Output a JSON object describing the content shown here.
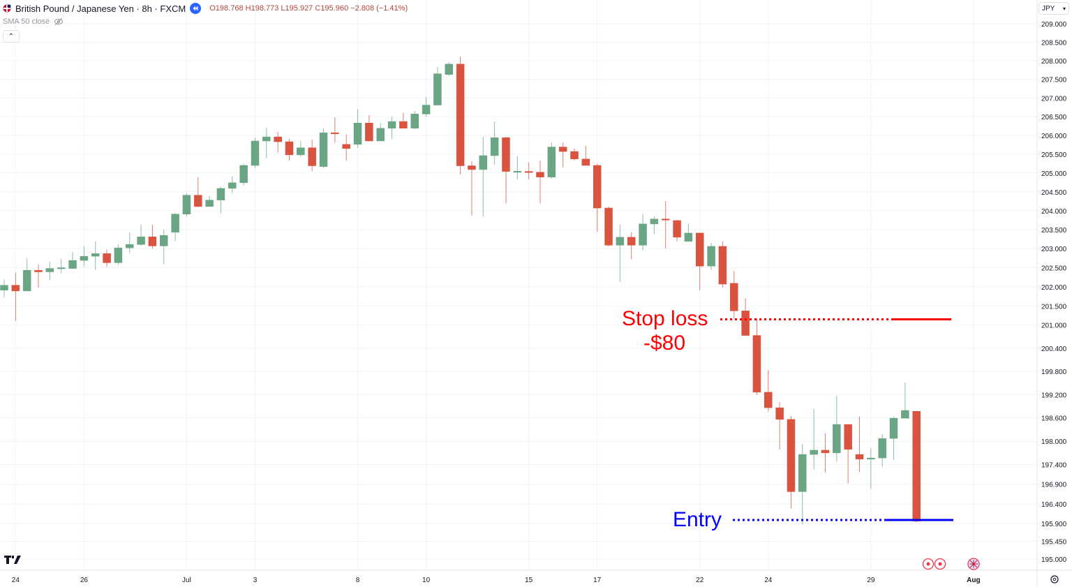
{
  "header": {
    "title": "British Pound / Japanese Yen · 8h · FXCM",
    "ohlc": {
      "open": "O198.768",
      "high": "H198.773",
      "low": "L195.927",
      "close": "C195.960",
      "change": "−2.808 (−1.41%)"
    },
    "indicator": "SMA 50 close",
    "icons": {
      "flag": "uk-flag-icon",
      "replay": "rewind-icon",
      "visibility": "eye-off-icon",
      "collapse": "chevron-up-icon"
    }
  },
  "axis_currency": "JPY",
  "colors": {
    "up": "#6aa584",
    "down": "#d9533f",
    "stop": "#ff0000",
    "entry": "#0000ff",
    "ohlc_text": "#b0463c"
  },
  "annotations": {
    "stop_label": "Stop loss",
    "stop_amount": "-$80",
    "entry_label": "Entry"
  },
  "chart_data": {
    "type": "candlestick",
    "title": "British Pound / Japanese Yen · 8h · FXCM",
    "yscale": "log",
    "ylim": [
      194.6,
      209.2
    ],
    "grid": true,
    "y_ticks": [
      "209.000",
      "208.500",
      "208.000",
      "207.500",
      "207.000",
      "206.500",
      "206.000",
      "205.500",
      "205.000",
      "204.500",
      "204.000",
      "203.500",
      "203.000",
      "202.500",
      "202.000",
      "201.500",
      "201.000",
      "200.400",
      "199.800",
      "199.200",
      "198.600",
      "198.000",
      "197.400",
      "196.900",
      "196.400",
      "195.900",
      "195.450",
      "195.000"
    ],
    "x_ticks": [
      {
        "label": "24",
        "bar": 1
      },
      {
        "label": "26",
        "bar": 7
      },
      {
        "label": "Jul",
        "bar": 16
      },
      {
        "label": "3",
        "bar": 22
      },
      {
        "label": "8",
        "bar": 31
      },
      {
        "label": "10",
        "bar": 37
      },
      {
        "label": "15",
        "bar": 46
      },
      {
        "label": "17",
        "bar": 52
      },
      {
        "label": "22",
        "bar": 61
      },
      {
        "label": "24",
        "bar": 67
      },
      {
        "label": "29",
        "bar": 76
      },
      {
        "label": "Aug",
        "bar": 85
      }
    ],
    "candles_ohlc": [
      [
        201.91,
        202.19,
        201.72,
        202.04
      ],
      [
        202.04,
        202.37,
        201.11,
        201.89
      ],
      [
        201.89,
        202.74,
        201.89,
        202.43
      ],
      [
        202.43,
        202.59,
        201.98,
        202.39
      ],
      [
        202.39,
        202.65,
        202.17,
        202.48
      ],
      [
        202.48,
        202.74,
        202.35,
        202.5
      ],
      [
        202.48,
        202.91,
        202.46,
        202.69
      ],
      [
        202.69,
        203.07,
        202.54,
        202.8
      ],
      [
        202.8,
        203.19,
        202.44,
        202.87
      ],
      [
        202.87,
        202.98,
        202.52,
        202.63
      ],
      [
        202.63,
        203.11,
        202.57,
        203.02
      ],
      [
        203.02,
        203.43,
        202.89,
        203.11
      ],
      [
        203.11,
        203.63,
        203.07,
        203.31
      ],
      [
        203.31,
        203.63,
        203.0,
        203.07
      ],
      [
        203.07,
        203.5,
        202.59,
        203.35
      ],
      [
        203.43,
        203.94,
        203.2,
        203.91
      ],
      [
        203.91,
        204.46,
        203.85,
        204.41
      ],
      [
        204.41,
        204.89,
        204.09,
        204.11
      ],
      [
        204.11,
        204.39,
        204.11,
        204.28
      ],
      [
        204.28,
        204.63,
        203.93,
        204.59
      ],
      [
        204.59,
        204.91,
        204.46,
        204.74
      ],
      [
        204.74,
        205.24,
        204.67,
        205.2
      ],
      [
        205.2,
        205.93,
        205.13,
        205.85
      ],
      [
        205.85,
        206.2,
        205.39,
        205.96
      ],
      [
        205.96,
        206.09,
        205.54,
        205.83
      ],
      [
        205.83,
        205.91,
        205.33,
        205.48
      ],
      [
        205.48,
        205.85,
        205.43,
        205.67
      ],
      [
        205.67,
        205.89,
        205.04,
        205.19
      ],
      [
        205.17,
        206.19,
        205.13,
        206.07
      ],
      [
        206.07,
        206.48,
        205.8,
        206.04
      ],
      [
        205.76,
        206.02,
        205.33,
        205.65
      ],
      [
        205.76,
        206.7,
        205.67,
        206.33
      ],
      [
        206.33,
        206.54,
        205.85,
        205.85
      ],
      [
        205.85,
        206.33,
        205.85,
        206.19
      ],
      [
        206.19,
        206.5,
        205.91,
        206.37
      ],
      [
        206.37,
        206.61,
        206.19,
        206.19
      ],
      [
        206.19,
        206.65,
        206.17,
        206.57
      ],
      [
        206.57,
        207.02,
        206.5,
        206.81
      ],
      [
        206.81,
        207.83,
        206.81,
        207.65
      ],
      [
        207.63,
        207.96,
        207.59,
        207.91
      ],
      [
        207.91,
        208.11,
        204.96,
        205.19
      ],
      [
        205.19,
        205.31,
        203.87,
        205.09
      ],
      [
        205.09,
        205.96,
        203.85,
        205.46
      ],
      [
        205.46,
        206.37,
        205.22,
        205.94
      ],
      [
        205.94,
        205.96,
        204.19,
        205.04
      ],
      [
        205.04,
        205.44,
        204.83,
        205.045
      ],
      [
        205.04,
        205.28,
        204.83,
        205.02
      ],
      [
        205.02,
        205.33,
        204.19,
        204.89
      ],
      [
        204.89,
        205.81,
        204.85,
        205.69
      ],
      [
        205.69,
        205.81,
        205.15,
        205.57
      ],
      [
        205.57,
        205.65,
        205.33,
        205.37
      ],
      [
        205.37,
        205.72,
        205.2,
        205.2
      ],
      [
        205.2,
        205.24,
        203.44,
        204.07
      ],
      [
        204.07,
        204.11,
        203.06,
        203.09
      ],
      [
        203.09,
        203.63,
        202.13,
        203.3
      ],
      [
        203.3,
        203.43,
        202.72,
        203.09
      ],
      [
        203.09,
        203.91,
        202.96,
        203.65
      ],
      [
        203.65,
        203.85,
        203.39,
        203.78
      ],
      [
        203.78,
        204.26,
        203.0,
        203.76
      ],
      [
        203.74,
        203.76,
        203.19,
        203.3
      ],
      [
        203.19,
        203.65,
        203.19,
        203.41
      ],
      [
        203.41,
        203.41,
        201.91,
        202.54
      ],
      [
        202.54,
        203.15,
        202.44,
        203.06
      ],
      [
        203.06,
        203.19,
        201.98,
        202.07
      ],
      [
        202.09,
        202.41,
        201.17,
        201.37
      ],
      [
        201.37,
        201.7,
        200.73,
        200.73
      ],
      [
        200.73,
        201.17,
        199.19,
        199.26
      ],
      [
        199.26,
        199.83,
        198.77,
        198.86
      ],
      [
        198.86,
        199.01,
        197.79,
        198.56
      ],
      [
        198.56,
        198.65,
        196.28,
        196.71
      ],
      [
        196.71,
        197.93,
        195.87,
        197.66
      ],
      [
        197.66,
        198.83,
        197.27,
        197.77
      ],
      [
        197.77,
        198.2,
        197.19,
        197.7
      ],
      [
        197.7,
        199.17,
        197.48,
        198.43
      ],
      [
        198.43,
        198.43,
        196.92,
        197.79
      ],
      [
        197.66,
        198.63,
        197.21,
        197.54
      ],
      [
        197.54,
        197.82,
        196.78,
        197.57
      ],
      [
        197.57,
        198.18,
        197.34,
        198.07
      ],
      [
        198.07,
        198.63,
        197.52,
        198.59
      ],
      [
        198.59,
        199.51,
        198.59,
        198.79
      ],
      [
        198.768,
        198.773,
        195.927,
        195.96
      ]
    ],
    "stop_loss_level": 201.15,
    "entry_level": 195.99
  }
}
